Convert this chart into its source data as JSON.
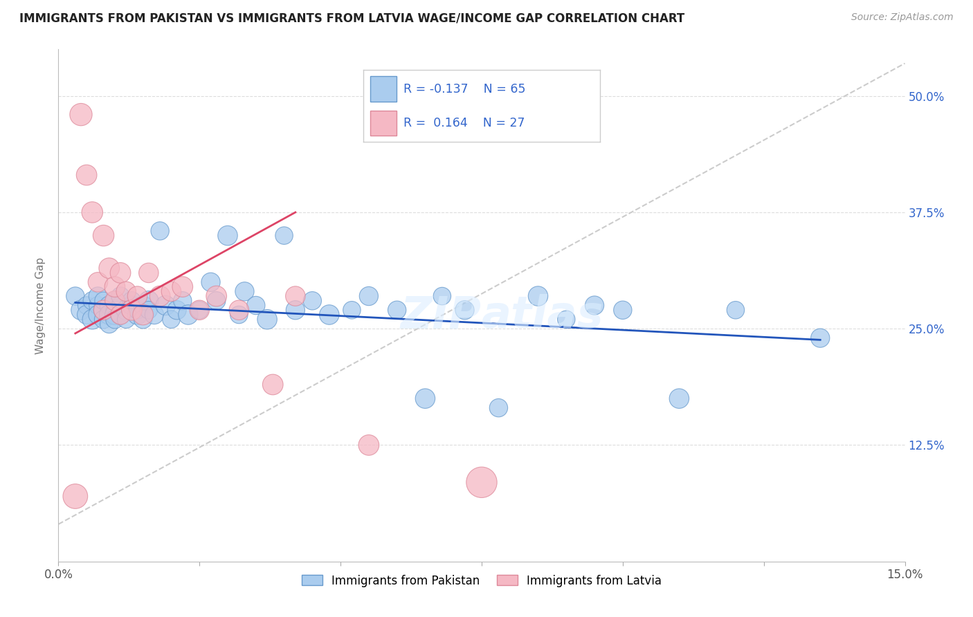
{
  "title": "IMMIGRANTS FROM PAKISTAN VS IMMIGRANTS FROM LATVIA WAGE/INCOME GAP CORRELATION CHART",
  "source_text": "Source: ZipAtlas.com",
  "ylabel": "Wage/Income Gap",
  "xlim": [
    0.0,
    0.15
  ],
  "ylim": [
    0.0,
    0.55
  ],
  "ytick_positions": [
    0.125,
    0.25,
    0.375,
    0.5
  ],
  "ytick_labels": [
    "12.5%",
    "25.0%",
    "37.5%",
    "50.0%"
  ],
  "grid_color": "#dddddd",
  "background_color": "#ffffff",
  "watermark": "ZIPatlas",
  "pakistan_color": "#6699cc",
  "pakistan_color_fill": "#aaccee",
  "latvia_color": "#dd8899",
  "latvia_color_fill": "#f5b8c4",
  "blue_line_color": "#2255bb",
  "pink_line_color": "#dd4466",
  "dashed_line_color": "#cccccc",
  "pakistan_scatter_x": [
    0.003,
    0.004,
    0.005,
    0.005,
    0.006,
    0.006,
    0.007,
    0.007,
    0.007,
    0.008,
    0.008,
    0.008,
    0.009,
    0.009,
    0.009,
    0.01,
    0.01,
    0.01,
    0.01,
    0.011,
    0.011,
    0.011,
    0.012,
    0.012,
    0.013,
    0.013,
    0.014,
    0.014,
    0.015,
    0.015,
    0.016,
    0.016,
    0.017,
    0.018,
    0.019,
    0.02,
    0.021,
    0.022,
    0.023,
    0.025,
    0.027,
    0.028,
    0.03,
    0.032,
    0.033,
    0.035,
    0.037,
    0.04,
    0.042,
    0.045,
    0.048,
    0.052,
    0.055,
    0.06,
    0.065,
    0.068,
    0.072,
    0.078,
    0.085,
    0.09,
    0.095,
    0.1,
    0.11,
    0.12,
    0.135
  ],
  "pakistan_scatter_y": [
    0.285,
    0.27,
    0.275,
    0.265,
    0.28,
    0.26,
    0.275,
    0.265,
    0.285,
    0.27,
    0.26,
    0.28,
    0.275,
    0.265,
    0.255,
    0.27,
    0.28,
    0.265,
    0.26,
    0.275,
    0.265,
    0.285,
    0.27,
    0.26,
    0.275,
    0.28,
    0.265,
    0.27,
    0.275,
    0.26,
    0.28,
    0.27,
    0.265,
    0.355,
    0.275,
    0.26,
    0.27,
    0.28,
    0.265,
    0.27,
    0.3,
    0.28,
    0.35,
    0.265,
    0.29,
    0.275,
    0.26,
    0.35,
    0.27,
    0.28,
    0.265,
    0.27,
    0.285,
    0.27,
    0.175,
    0.285,
    0.27,
    0.165,
    0.285,
    0.26,
    0.275,
    0.27,
    0.175,
    0.27,
    0.24
  ],
  "pakistan_scatter_size": [
    30,
    35,
    28,
    32,
    30,
    35,
    28,
    32,
    30,
    35,
    30,
    28,
    32,
    35,
    30,
    28,
    32,
    35,
    30,
    28,
    32,
    30,
    35,
    28,
    32,
    30,
    35,
    28,
    32,
    30,
    35,
    28,
    32,
    30,
    35,
    28,
    32,
    30,
    35,
    28,
    32,
    30,
    35,
    28,
    32,
    30,
    35,
    28,
    32,
    30,
    35,
    28,
    32,
    30,
    35,
    28,
    32,
    30,
    35,
    28,
    32,
    30,
    35,
    28,
    32
  ],
  "latvia_scatter_x": [
    0.003,
    0.004,
    0.005,
    0.006,
    0.007,
    0.008,
    0.008,
    0.009,
    0.01,
    0.01,
    0.011,
    0.011,
    0.012,
    0.013,
    0.014,
    0.015,
    0.016,
    0.018,
    0.02,
    0.022,
    0.025,
    0.028,
    0.032,
    0.038,
    0.042,
    0.055,
    0.075
  ],
  "latvia_scatter_y": [
    0.07,
    0.48,
    0.415,
    0.375,
    0.3,
    0.35,
    0.27,
    0.315,
    0.28,
    0.295,
    0.265,
    0.31,
    0.29,
    0.27,
    0.285,
    0.265,
    0.31,
    0.285,
    0.29,
    0.295,
    0.27,
    0.285,
    0.27,
    0.19,
    0.285,
    0.125,
    0.085
  ],
  "latvia_scatter_size": [
    55,
    45,
    38,
    40,
    35,
    40,
    35,
    38,
    35,
    38,
    35,
    38,
    35,
    38,
    35,
    38,
    35,
    38,
    35,
    38,
    35,
    38,
    35,
    38,
    35,
    38,
    85
  ],
  "pak_line_x": [
    0.003,
    0.135
  ],
  "pak_line_y": [
    0.278,
    0.238
  ],
  "lat_line_x": [
    0.003,
    0.042
  ],
  "lat_line_y": [
    0.245,
    0.375
  ],
  "dash_line_x": [
    0.0,
    0.15
  ],
  "dash_line_y": [
    0.04,
    0.535
  ]
}
